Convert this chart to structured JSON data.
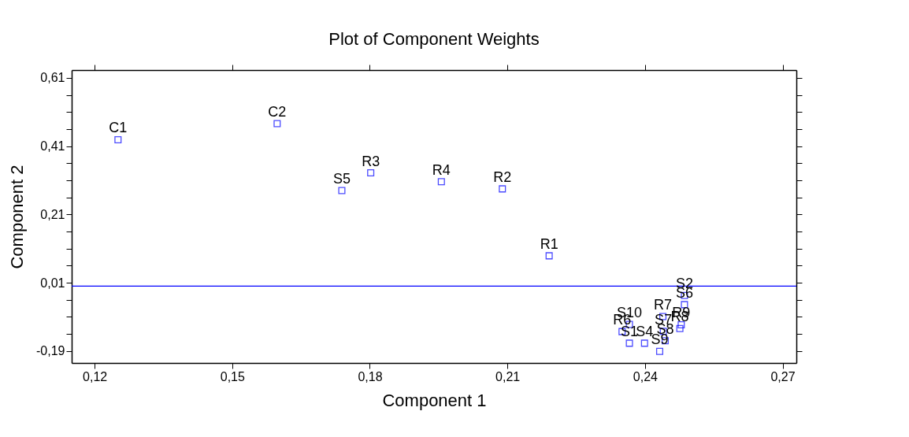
{
  "chart_data": {
    "type": "scatter",
    "title": "Plot of Component Weights",
    "xlabel": "Component 1",
    "ylabel": "Component 2",
    "series": [
      {
        "color": "#0000ff",
        "marker": "square",
        "x": [
          0.1251,
          0.1598,
          0.1739,
          0.1802,
          0.1956,
          0.2089,
          0.2191,
          0.235,
          0.2366,
          0.2366,
          0.2399,
          0.2432,
          0.2439,
          0.244,
          0.2444,
          0.2476,
          0.2479,
          0.2486,
          0.2486
        ],
        "values": [
          0.429,
          0.476,
          0.28,
          0.332,
          0.306,
          0.285,
          0.089,
          -0.133,
          -0.112,
          -0.167,
          -0.167,
          -0.191,
          -0.089,
          -0.132,
          -0.16,
          -0.124,
          -0.113,
          -0.054,
          -0.027
        ],
        "value_labels": [
          "C1",
          "C2",
          "S5",
          "R3",
          "R4",
          "R2",
          "R1",
          "R6",
          "S10",
          "S1",
          "S4",
          "S9",
          "R7",
          "S7",
          "S8",
          "R8",
          "R9",
          "S6",
          "S2"
        ]
      }
    ],
    "xlim": [
      0.115,
      0.273
    ],
    "ylim": [
      -0.225,
      0.633
    ],
    "xticks": [
      {
        "value": 0.12,
        "label": "0,12"
      },
      {
        "value": 0.15,
        "label": "0,15"
      },
      {
        "value": 0.18,
        "label": "0,18"
      },
      {
        "value": 0.21,
        "label": "0,21"
      },
      {
        "value": 0.24,
        "label": "0,24"
      },
      {
        "value": 0.27,
        "label": "0,27"
      }
    ],
    "yticks": [
      {
        "value": -0.19,
        "label": "-0,19"
      },
      {
        "value": -0.14,
        "label": null
      },
      {
        "value": -0.09,
        "label": null
      },
      {
        "value": -0.04,
        "label": null
      },
      {
        "value": 0.01,
        "label": "0,01"
      },
      {
        "value": 0.06,
        "label": null
      },
      {
        "value": 0.11,
        "label": null
      },
      {
        "value": 0.16,
        "label": null
      },
      {
        "value": 0.21,
        "label": "0,21"
      },
      {
        "value": 0.26,
        "label": null
      },
      {
        "value": 0.31,
        "label": null
      },
      {
        "value": 0.36,
        "label": null
      },
      {
        "value": 0.41,
        "label": "0,41"
      },
      {
        "value": 0.46,
        "label": null
      },
      {
        "value": 0.51,
        "label": null
      },
      {
        "value": 0.56,
        "label": null
      },
      {
        "value": 0.61,
        "label": "0,61"
      }
    ],
    "ref_lines": [
      {
        "axis": "y",
        "value": 0,
        "color": "#0000ff"
      }
    ],
    "grid": false
  }
}
